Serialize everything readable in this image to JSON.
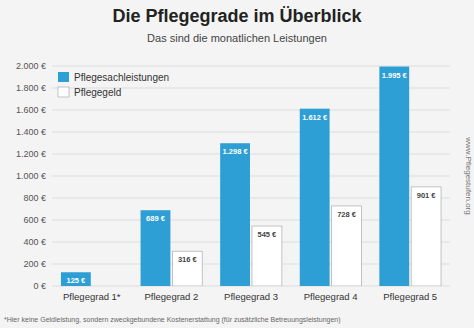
{
  "chart_data": {
    "type": "bar",
    "title": "Die Pflegegrade im Überblick",
    "subtitle": "Das sind die monatlichen Leistungen",
    "categories": [
      "Pflegegrad 1*",
      "Pflegegrad 2",
      "Pflegegrad 3",
      "Pflegegrad 4",
      "Pflegegrad 5"
    ],
    "series": [
      {
        "name": "Pflegesachleistungen",
        "color": "#2e9fd4",
        "values": [
          125,
          689,
          1298,
          1612,
          1995
        ],
        "value_labels": [
          "125 €",
          "689 €",
          "1.298 €",
          "1.612 €",
          "1.995 €"
        ]
      },
      {
        "name": "Pflegegeld",
        "color": "#ffffff",
        "values": [
          0,
          316,
          545,
          728,
          901
        ],
        "value_labels": [
          null,
          "316 €",
          "545 €",
          "728 €",
          "901 €"
        ]
      }
    ],
    "ylim": [
      0,
      2000
    ],
    "yticks": [
      {
        "value": 0,
        "label": "0 €"
      },
      {
        "value": 200,
        "label": "200 €"
      },
      {
        "value": 400,
        "label": "400 €"
      },
      {
        "value": 600,
        "label": "600 €"
      },
      {
        "value": 800,
        "label": "800 €"
      },
      {
        "value": 1000,
        "label": "1.000 €"
      },
      {
        "value": 1200,
        "label": "1.200 €"
      },
      {
        "value": 1400,
        "label": "1.400 €"
      },
      {
        "value": 1600,
        "label": "1.600 €"
      },
      {
        "value": 1800,
        "label": "1.800 €"
      },
      {
        "value": 2000,
        "label": "2.000 €"
      }
    ],
    "grid": true,
    "legend": "upper left",
    "data_labels": true,
    "annotations": [
      "*Hier keine Geldleistung, sondern zweckgebundene Kostenerstattung (für zusätzliche Betreuungsleistungen)",
      "www.Pflegestufen.org"
    ]
  }
}
